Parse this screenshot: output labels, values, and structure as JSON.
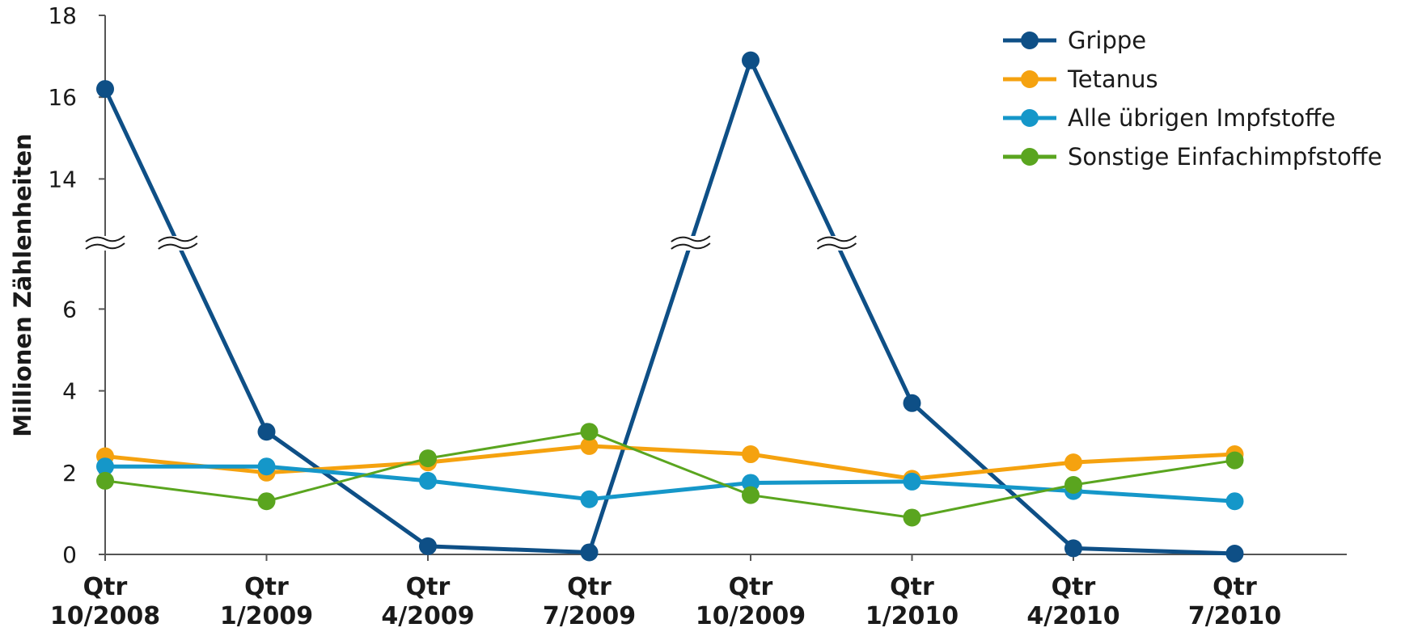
{
  "chart_data": {
    "type": "line",
    "xlabel": "",
    "ylabel": "Millionen Zählenheiten",
    "categories": [
      [
        "Qtr",
        "10/2008"
      ],
      [
        "Qtr",
        "1/2009"
      ],
      [
        "Qtr",
        "4/2009"
      ],
      [
        "Qtr",
        "7/2009"
      ],
      [
        "Qtr",
        "10/2009"
      ],
      [
        "Qtr",
        "1/2010"
      ],
      [
        "Qtr",
        "4/2010"
      ],
      [
        "Qtr",
        "7/2010"
      ]
    ],
    "y_axis": {
      "broken": true,
      "lower_range": [
        0,
        7
      ],
      "upper_range": [
        12,
        18
      ],
      "ticks": [
        0,
        2,
        4,
        6,
        14,
        16,
        18
      ]
    },
    "grid": false,
    "legend_position": "top-right",
    "series": [
      {
        "name": "Grippe",
        "color": "#0e4f86",
        "width": 5,
        "values": [
          16.2,
          3.0,
          0.2,
          0.05,
          16.9,
          3.7,
          0.15,
          0.02
        ]
      },
      {
        "name": "Tetanus",
        "color": "#f5a20f",
        "width": 5,
        "values": [
          2.4,
          2.0,
          2.25,
          2.65,
          2.45,
          1.85,
          2.25,
          2.45
        ]
      },
      {
        "name": "Alle übrigen Impfstoffe",
        "color": "#1597c9",
        "width": 5,
        "values": [
          2.15,
          2.15,
          1.8,
          1.35,
          1.75,
          1.78,
          1.55,
          1.3
        ]
      },
      {
        "name": "Sonstige Einfachimpfstoffe",
        "color": "#5aa51f",
        "width": 3,
        "values": [
          1.8,
          1.3,
          2.35,
          3.0,
          1.45,
          0.9,
          1.7,
          2.3
        ]
      }
    ]
  }
}
